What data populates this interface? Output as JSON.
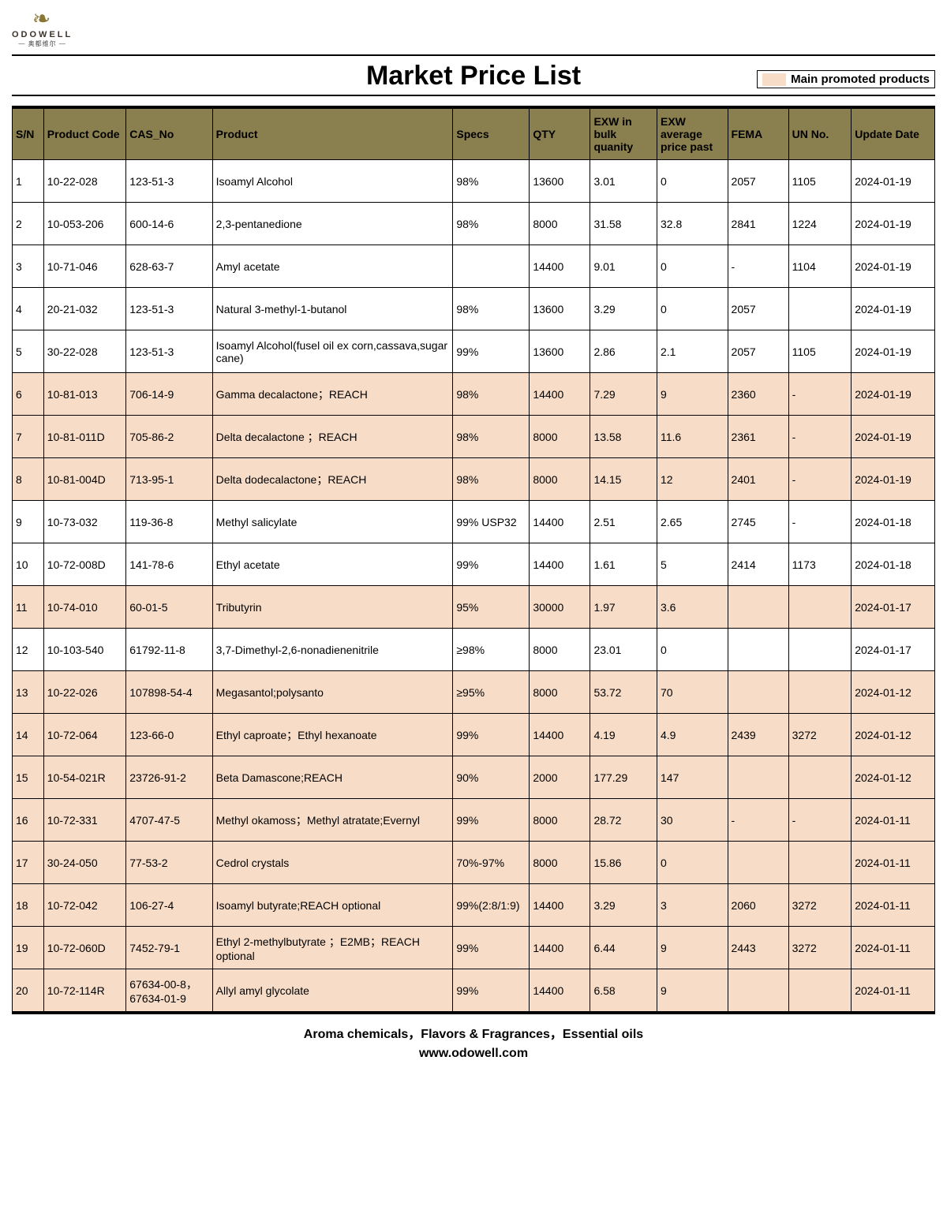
{
  "brand": {
    "name": "ODOWELL",
    "subtitle": "— 奥都维尔 —"
  },
  "title": "Market Price List",
  "legend": {
    "label": "Main promoted products",
    "swatch_color": "#f7dcc7"
  },
  "colors": {
    "header_bg": "#8a7f4e",
    "promoted_bg": "#f7dcc7",
    "normal_bg": "#ffffff",
    "border": "#000000",
    "text": "#000000"
  },
  "column_widths_pct": [
    3.2,
    8.4,
    8.8,
    24.5,
    7.8,
    6.2,
    6.8,
    7.2,
    6.2,
    6.4,
    8.5
  ],
  "columns": [
    "S/N",
    "Product Code",
    "CAS_No",
    "Product",
    "Specs",
    "QTY",
    "EXW in bulk quanity",
    "EXW average price past",
    "FEMA",
    "UN No.",
    "Update Date"
  ],
  "rows": [
    {
      "sn": "1",
      "code": "10-22-028",
      "cas": "123-51-3",
      "product": "Isoamyl Alcohol",
      "specs": "98%",
      "qty": "13600",
      "exw_bulk": "3.01",
      "exw_avg": "0",
      "fema": "2057",
      "un": "1105",
      "date": "2024-01-19",
      "promoted": false
    },
    {
      "sn": "2",
      "code": "10-053-206",
      "cas": "600-14-6",
      "product": "2,3-pentanedione",
      "specs": "98%",
      "qty": "8000",
      "exw_bulk": "31.58",
      "exw_avg": "32.8",
      "fema": "2841",
      "un": "1224",
      "date": "2024-01-19",
      "promoted": false
    },
    {
      "sn": "3",
      "code": "10-71-046",
      "cas": "628-63-7",
      "product": "Amyl acetate",
      "specs": "",
      "qty": "14400",
      "exw_bulk": "9.01",
      "exw_avg": "0",
      "fema": "-",
      "un": "1104",
      "date": "2024-01-19",
      "promoted": false
    },
    {
      "sn": "4",
      "code": "20-21-032",
      "cas": "123-51-3",
      "product": "Natural 3-methyl-1-butanol",
      "specs": "98%",
      "qty": "13600",
      "exw_bulk": "3.29",
      "exw_avg": "0",
      "fema": "2057",
      "un": "",
      "date": "2024-01-19",
      "promoted": false
    },
    {
      "sn": "5",
      "code": "30-22-028",
      "cas": "123-51-3",
      "product": "Isoamyl Alcohol(fusel oil ex corn,cassava,sugar cane)",
      "specs": "99%",
      "qty": "13600",
      "exw_bulk": "2.86",
      "exw_avg": "2.1",
      "fema": "2057",
      "un": "1105",
      "date": "2024-01-19",
      "promoted": false
    },
    {
      "sn": "6",
      "code": "10-81-013",
      "cas": "706-14-9",
      "product": "Gamma decalactone；REACH",
      "specs": "98%",
      "qty": "14400",
      "exw_bulk": "7.29",
      "exw_avg": "9",
      "fema": "2360",
      "un": "-",
      "date": "2024-01-19",
      "promoted": true
    },
    {
      "sn": "7",
      "code": "10-81-011D",
      "cas": "705-86-2",
      "product": "Delta decalactone ；REACH",
      "specs": "98%",
      "qty": "8000",
      "exw_bulk": "13.58",
      "exw_avg": "11.6",
      "fema": "2361",
      "un": "-",
      "date": "2024-01-19",
      "promoted": true
    },
    {
      "sn": "8",
      "code": "10-81-004D",
      "cas": "713-95-1",
      "product": "Delta dodecalactone；REACH",
      "specs": "98%",
      "qty": "8000",
      "exw_bulk": "14.15",
      "exw_avg": "12",
      "fema": "2401",
      "un": "-",
      "date": "2024-01-19",
      "promoted": true
    },
    {
      "sn": "9",
      "code": "10-73-032",
      "cas": "119-36-8",
      "product": "Methyl salicylate",
      "specs": "99% USP32",
      "qty": "14400",
      "exw_bulk": "2.51",
      "exw_avg": "2.65",
      "fema": "2745",
      "un": "-",
      "date": "2024-01-18",
      "promoted": false
    },
    {
      "sn": "10",
      "code": "10-72-008D",
      "cas": "141-78-6",
      "product": "Ethyl acetate",
      "specs": "99%",
      "qty": "14400",
      "exw_bulk": "1.61",
      "exw_avg": "5",
      "fema": "2414",
      "un": "1173",
      "date": "2024-01-18",
      "promoted": false
    },
    {
      "sn": "11",
      "code": "10-74-010",
      "cas": "60-01-5",
      "product": "Tributyrin",
      "specs": "95%",
      "qty": "30000",
      "exw_bulk": "1.97",
      "exw_avg": "3.6",
      "fema": "",
      "un": "",
      "date": "2024-01-17",
      "promoted": true
    },
    {
      "sn": "12",
      "code": "10-103-540",
      "cas": "61792-11-8",
      "product": "3,7-Dimethyl-2,6-nonadienenitrile",
      "specs": " ≥98%",
      "qty": "8000",
      "exw_bulk": "23.01",
      "exw_avg": "0",
      "fema": "",
      "un": "",
      "date": "2024-01-17",
      "promoted": false
    },
    {
      "sn": "13",
      "code": "10-22-026",
      "cas": "107898-54-4",
      "product": "Megasantol;polysanto",
      "specs": "≥95%",
      "qty": "8000",
      "exw_bulk": "53.72",
      "exw_avg": "70",
      "fema": "",
      "un": "",
      "date": "2024-01-12",
      "promoted": true
    },
    {
      "sn": "14",
      "code": "10-72-064",
      "cas": "123-66-0",
      "product": "Ethyl caproate；Ethyl hexanoate",
      "specs": "99%",
      "qty": "14400",
      "exw_bulk": "4.19",
      "exw_avg": "4.9",
      "fema": "2439",
      "un": "3272",
      "date": "2024-01-12",
      "promoted": true
    },
    {
      "sn": "15",
      "code": "10-54-021R",
      "cas": "23726-91-2",
      "product": "Beta Damascone;REACH",
      "specs": "90%",
      "qty": "2000",
      "exw_bulk": "177.29",
      "exw_avg": "147",
      "fema": "",
      "un": "",
      "date": "2024-01-12",
      "promoted": true
    },
    {
      "sn": "16",
      "code": "10-72-331",
      "cas": "4707-47-5",
      "product": "Methyl okamoss；Methyl atratate;Evernyl",
      "specs": "99%",
      "qty": "8000",
      "exw_bulk": "28.72",
      "exw_avg": "30",
      "fema": "-",
      "un": "-",
      "date": "2024-01-11",
      "promoted": true
    },
    {
      "sn": "17",
      "code": "30-24-050",
      "cas": "77-53-2",
      "product": "Cedrol crystals",
      "specs": "70%-97%",
      "qty": "8000",
      "exw_bulk": "15.86",
      "exw_avg": "0",
      "fema": "",
      "un": "",
      "date": "2024-01-11",
      "promoted": true
    },
    {
      "sn": "18",
      "code": "10-72-042",
      "cas": "106-27-4",
      "product": "Isoamyl butyrate;REACH optional",
      "specs": "99%(2:8/1:9)",
      "qty": "14400",
      "exw_bulk": "3.29",
      "exw_avg": "3",
      "fema": "2060",
      "un": "3272",
      "date": "2024-01-11",
      "promoted": true
    },
    {
      "sn": "19",
      "code": "10-72-060D",
      "cas": "7452-79-1",
      "product": "Ethyl 2-methylbutyrate ；E2MB；REACH optional",
      "specs": "99%",
      "qty": "14400",
      "exw_bulk": "6.44",
      "exw_avg": "9",
      "fema": "2443",
      "un": "3272",
      "date": "2024-01-11",
      "promoted": true
    },
    {
      "sn": "20",
      "code": "10-72-114R",
      "cas": "67634-00-8，67634-01-9",
      "product": "Allyl amyl glycolate",
      "specs": "99%",
      "qty": "14400",
      "exw_bulk": "6.58",
      "exw_avg": "9",
      "fema": "",
      "un": "",
      "date": "2024-01-11",
      "promoted": true
    }
  ],
  "footer": {
    "line1": "Aroma chemicals，Flavors & Fragrances，Essential oils",
    "line2": "www.odowell.com"
  }
}
